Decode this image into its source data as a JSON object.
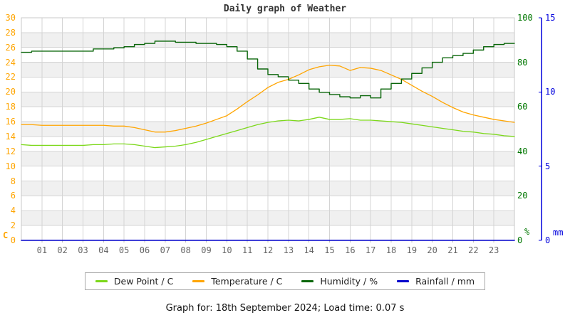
{
  "chart": {
    "title": "Daily graph of Weather"
  },
  "footer": {
    "text": "Graph for: 18th September 2024; Load time: 0.07 s"
  },
  "legend": {
    "items": [
      {
        "label": "Dew Point / C",
        "color": "#7cd81a"
      },
      {
        "label": "Temperature / C",
        "color": "#ffa500"
      },
      {
        "label": "Humidity / %",
        "color": "#0a660a"
      },
      {
        "label": "Rainfall / mm",
        "color": "#0000cc"
      }
    ]
  },
  "chart_data": {
    "type": "line",
    "title": "Daily graph of Weather",
    "grid": true,
    "legend_position": "bottom",
    "x_unit": "hour of day",
    "x_tick_labels": [
      "01",
      "02",
      "03",
      "04",
      "05",
      "06",
      "07",
      "08",
      "09",
      "10",
      "11",
      "12",
      "13",
      "14",
      "15",
      "16",
      "17",
      "18",
      "19",
      "20",
      "21",
      "22",
      "23"
    ],
    "axes": {
      "left": {
        "label": "C",
        "min": 0,
        "max": 30,
        "tick_step": 2,
        "color": "#ffa500"
      },
      "right_percent": {
        "label": "%",
        "min": 0,
        "max": 100,
        "tick_step": 20,
        "color": "#007700"
      },
      "right_mm": {
        "label": "mm",
        "min": 0,
        "max": 15,
        "tick_step": 5,
        "color": "#0000dd"
      }
    },
    "x": [
      0,
      0.5,
      1,
      1.5,
      2,
      2.5,
      3,
      3.5,
      4,
      4.5,
      5,
      5.5,
      6,
      6.5,
      7,
      7.5,
      8,
      8.5,
      9,
      9.5,
      10,
      10.5,
      11,
      11.5,
      12,
      12.5,
      13,
      13.5,
      14,
      14.5,
      15,
      15.5,
      16,
      16.5,
      17,
      17.5,
      18,
      18.5,
      19,
      19.5,
      20,
      20.5,
      21,
      21.5,
      22,
      22.5,
      23,
      23.5,
      24
    ],
    "series": [
      {
        "name": "Dew Point / C",
        "axis": "left",
        "color": "#7cd81a",
        "interpolation": "linear",
        "stroke_width": 1.3,
        "values": [
          12.9,
          12.8,
          12.8,
          12.8,
          12.8,
          12.8,
          12.8,
          12.9,
          12.9,
          13.0,
          13.0,
          12.9,
          12.7,
          12.5,
          12.6,
          12.7,
          12.9,
          13.2,
          13.6,
          14.0,
          14.4,
          14.8,
          15.2,
          15.6,
          15.9,
          16.1,
          16.2,
          16.1,
          16.3,
          16.6,
          16.3,
          16.3,
          16.4,
          16.2,
          16.2,
          16.1,
          16.0,
          15.9,
          15.7,
          15.5,
          15.3,
          15.1,
          14.9,
          14.7,
          14.6,
          14.4,
          14.3,
          14.1,
          14.0
        ]
      },
      {
        "name": "Temperature / C",
        "axis": "left",
        "color": "#ffa500",
        "interpolation": "linear",
        "stroke_width": 1.3,
        "values": [
          15.6,
          15.6,
          15.5,
          15.5,
          15.5,
          15.5,
          15.5,
          15.5,
          15.5,
          15.4,
          15.4,
          15.2,
          14.9,
          14.6,
          14.6,
          14.8,
          15.1,
          15.4,
          15.8,
          16.3,
          16.8,
          17.7,
          18.7,
          19.6,
          20.6,
          21.3,
          21.7,
          22.3,
          23.0,
          23.4,
          23.6,
          23.5,
          22.9,
          23.3,
          23.2,
          22.9,
          22.3,
          21.7,
          20.9,
          20.1,
          19.4,
          18.6,
          17.9,
          17.3,
          16.9,
          16.6,
          16.3,
          16.1,
          15.9
        ]
      },
      {
        "name": "Humidity / %",
        "axis": "right_percent",
        "color": "#0a660a",
        "interpolation": "step",
        "stroke_width": 1.4,
        "values": [
          84.5,
          85,
          85,
          85,
          85,
          85,
          85,
          86,
          86,
          86.5,
          87,
          88,
          88.5,
          89.5,
          89.5,
          89,
          89,
          88.5,
          88.5,
          88,
          87,
          85,
          81.5,
          77,
          74.5,
          73.5,
          72,
          70.5,
          68,
          66.5,
          65.5,
          64.5,
          64,
          65,
          64,
          68,
          70.5,
          72.5,
          75,
          77.5,
          80,
          82,
          83,
          84,
          85.5,
          87,
          88,
          88.5,
          88.5
        ]
      },
      {
        "name": "Rainfall / mm",
        "axis": "right_mm",
        "color": "#0000cc",
        "interpolation": "linear",
        "stroke_width": 1.6,
        "values": [
          0,
          0,
          0,
          0,
          0,
          0,
          0,
          0,
          0,
          0,
          0,
          0,
          0,
          0,
          0,
          0,
          0,
          0,
          0,
          0,
          0,
          0,
          0,
          0,
          0,
          0,
          0,
          0,
          0,
          0,
          0,
          0,
          0,
          0,
          0,
          0,
          0,
          0,
          0,
          0,
          0,
          0,
          0,
          0,
          0,
          0,
          0,
          0,
          0
        ]
      }
    ]
  }
}
